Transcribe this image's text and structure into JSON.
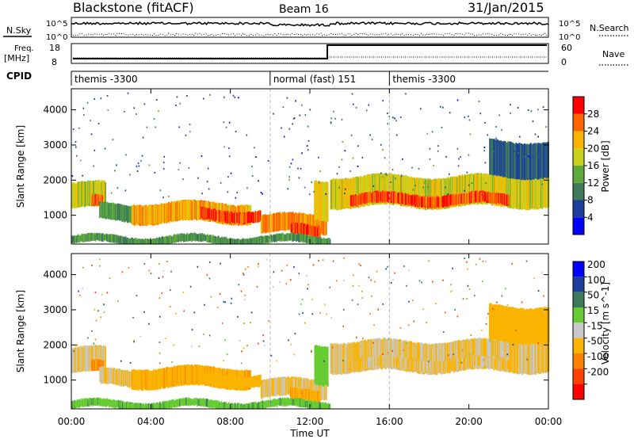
{
  "header": {
    "station": "Blackstone (fitACF)",
    "beam": "Beam 16",
    "date": "31/Jan/2015"
  },
  "labels": {
    "nsky": "N.Sky",
    "nsearch": "N.Search",
    "freq": "Freq.",
    "mhz": "[MHz]",
    "nave": "Nave",
    "cpid": "CPID"
  },
  "noise_axis": {
    "left_ticks": [
      "10^5",
      "10^0"
    ],
    "right_ticks": [
      "10^5",
      "10^0"
    ]
  },
  "freq_axis": {
    "left_ticks": [
      "18",
      "8"
    ],
    "right_ticks": [
      "60",
      "0"
    ]
  },
  "cpid_segments": [
    {
      "label": "themis -3300",
      "start": 0.0,
      "end": 10.0
    },
    {
      "label": "normal (fast) 151",
      "start": 10.0,
      "end": 16.0
    },
    {
      "label": "themis -3300",
      "start": 16.0,
      "end": 24.0
    }
  ],
  "time_axis": {
    "label": "Time UT",
    "range": [
      0,
      24
    ],
    "ticks": [
      {
        "v": 0,
        "label": "00:00"
      },
      {
        "v": 4,
        "label": "04:00"
      },
      {
        "v": 8,
        "label": "08:00"
      },
      {
        "v": 12,
        "label": "12:00"
      },
      {
        "v": 16,
        "label": "16:00"
      },
      {
        "v": 20,
        "label": "20:00"
      },
      {
        "v": 24,
        "label": "00:00"
      }
    ]
  },
  "range_axis": {
    "label": "Slant Range [km]",
    "range": [
      180,
      4600
    ],
    "ticks": [
      1000,
      2000,
      3000,
      4000
    ]
  },
  "power_scale": {
    "title": "Power [dB]",
    "ticks": [
      "4",
      "8",
      "12",
      "16",
      "20",
      "24",
      "28"
    ],
    "colors": [
      "#0000ff",
      "#1c3f9e",
      "#3c7a5a",
      "#5faa3c",
      "#c8d21e",
      "#fab400",
      "#ff6400",
      "#ff0000"
    ]
  },
  "velocity_scale": {
    "title": "Velocity [m s^-1]",
    "ticks": [
      "200",
      "100",
      "50",
      "15",
      "-15",
      "-50",
      "-100",
      "-200"
    ],
    "colors": [
      "#0000ff",
      "#1c3f9e",
      "#3c7a5a",
      "#66cc33",
      "#c8c8c8",
      "#fab400",
      "#ff8000",
      "#ff4000",
      "#ff0000"
    ]
  },
  "chart_data": {
    "type": "heatmap",
    "title": "Blackstone (fitACF) Beam 16 31/Jan/2015",
    "xlabel": "Time UT",
    "ylabel": "Slant Range [km]",
    "xlim": [
      0,
      24
    ],
    "ylim": [
      180,
      4600
    ],
    "panels": [
      "Power [dB]",
      "Velocity [m s^-1]"
    ],
    "bands": [
      {
        "t0": 0.0,
        "t1": 1.7,
        "r0": 1200,
        "r1": 1900,
        "power": 18,
        "velocity": -15
      },
      {
        "t0": 1.0,
        "t1": 1.6,
        "r0": 1200,
        "r1": 1500,
        "power": 26,
        "velocity": -60
      },
      {
        "t0": 1.4,
        "t1": 5.0,
        "r0": 850,
        "r1": 1300,
        "power": 12,
        "velocity": -15
      },
      {
        "t0": 3.0,
        "t1": 9.0,
        "r0": 800,
        "r1": 1350,
        "power": 22,
        "velocity": -40
      },
      {
        "t0": 6.5,
        "t1": 9.5,
        "r0": 850,
        "r1": 1150,
        "power": 27,
        "velocity": -30
      },
      {
        "t0": 9.5,
        "t1": 12.8,
        "r0": 500,
        "r1": 1000,
        "power": 24,
        "velocity": -15
      },
      {
        "t0": 11.0,
        "t1": 12.5,
        "r0": 400,
        "r1": 700,
        "power": 28,
        "velocity": -40
      },
      {
        "t0": 12.2,
        "t1": 12.9,
        "r0": 900,
        "r1": 2000,
        "power": 20,
        "velocity": 30
      },
      {
        "t0": 13.0,
        "t1": 24.0,
        "r0": 1250,
        "r1": 2100,
        "power": 19,
        "velocity": -15
      },
      {
        "t0": 14.0,
        "t1": 22.0,
        "r0": 1300,
        "r1": 1600,
        "power": 27,
        "velocity": -15
      },
      {
        "t0": 21.0,
        "t1": 24.0,
        "r0": 2100,
        "r1": 3100,
        "power": 8,
        "velocity": -30
      },
      {
        "t0": 0.0,
        "t1": 13.0,
        "r0": 200,
        "r1": 400,
        "power": 12,
        "velocity": 40
      }
    ]
  }
}
